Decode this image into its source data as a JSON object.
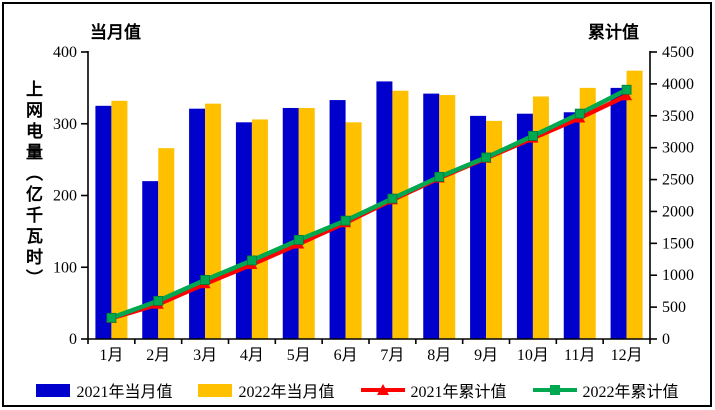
{
  "chart_data": {
    "type": "bar+line",
    "header_left": "当月值",
    "header_right": "累计值",
    "y_left": {
      "title": "上网电量（亿千瓦时）",
      "min": 0,
      "max": 400,
      "step": 100
    },
    "y_right": {
      "min": 0,
      "max": 4500,
      "step": 500
    },
    "categories": [
      "1月",
      "2月",
      "3月",
      "4月",
      "5月",
      "6月",
      "7月",
      "8月",
      "9月",
      "10月",
      "11月",
      "12月"
    ],
    "bar_series": [
      {
        "name": "2021年当月值",
        "color": "#0000CC",
        "values": [
          325,
          220,
          321,
          302,
          322,
          333,
          359,
          342,
          311,
          314,
          316,
          350
        ]
      },
      {
        "name": "2022年当月值",
        "color": "#FFC000",
        "values": [
          332,
          266,
          328,
          306,
          322,
          302,
          346,
          340,
          304,
          338,
          350,
          374
        ]
      }
    ],
    "line_series": [
      {
        "name": "2021年累计值",
        "color": "#FF0000",
        "marker": "triangle",
        "values": [
          325,
          545,
          866,
          1168,
          1490,
          1823,
          2182,
          2524,
          2835,
          3149,
          3465,
          3815
        ]
      },
      {
        "name": "2022年累计值",
        "color": "#00A850",
        "marker": "square",
        "values": [
          332,
          598,
          926,
          1232,
          1554,
          1856,
          2202,
          2542,
          2846,
          3184,
          3534,
          3908
        ]
      }
    ],
    "grid": false,
    "legend_position": "bottom"
  }
}
